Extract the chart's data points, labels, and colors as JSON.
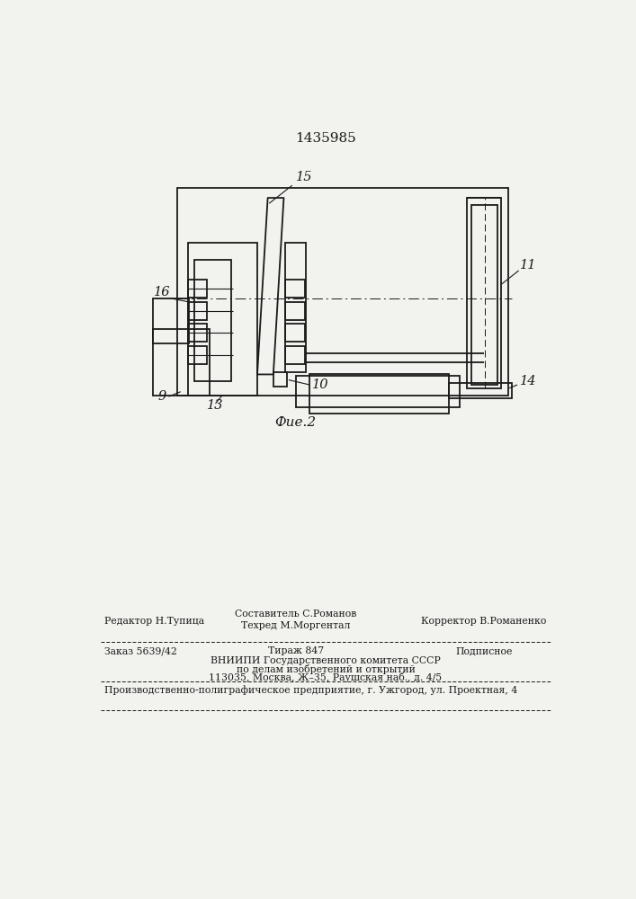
{
  "title": "1435985",
  "fig_label": "Фие.2",
  "line_color": "#1a1a1a",
  "bg_color": "#f2f2ee",
  "footer": {
    "editor": "Редактор Н.Тупица",
    "composer": "Составитель С.Романов",
    "techred": "Техред М.Моргентал",
    "corrector": "Корректор В.Романенко",
    "order": "Заказ 5639/42",
    "tirazh": "Тираж 847",
    "podpisnoe": "Подписное",
    "vniip1": "ВНИИПИ Государственного комитета СССР",
    "vniip2": "по делам изобретений и открытий",
    "vniip3": "113035, Москва, Ж–35, Раушская наб., д. 4/5",
    "producer": "Производственно-полиграфическое предприятие, г. Ужгород, ул. Проектная, 4"
  }
}
